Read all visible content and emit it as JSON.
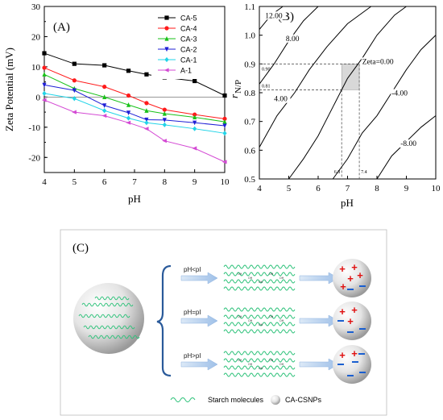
{
  "chart_data": [
    {
      "type": "line",
      "panel_label": "(A)",
      "xlabel": "pH",
      "ylabel": "Zeta Potential (mV)",
      "xlim": [
        4,
        10
      ],
      "ylim": [
        -25,
        30
      ],
      "x_ticks": [
        "4",
        "5",
        "6",
        "7",
        "8",
        "9",
        "10"
      ],
      "y_ticks": [
        "-20",
        "-10",
        "0",
        "10",
        "20",
        "30"
      ],
      "legend_position": "top-right",
      "series": [
        {
          "name": "CA-5",
          "color": "#000000",
          "marker": "square",
          "x": [
            4,
            5,
            6,
            6.8,
            7.4,
            8,
            9,
            10
          ],
          "values": [
            14.5,
            11,
            10.5,
            8.7,
            7.5,
            6.5,
            5.3,
            0.5
          ]
        },
        {
          "name": "CA-4",
          "color": "#ff1a1a",
          "marker": "circle",
          "x": [
            4,
            5,
            6,
            6.8,
            7.4,
            8,
            9,
            10
          ],
          "values": [
            9.7,
            5.5,
            3.4,
            0.5,
            -2,
            -4.2,
            -5.8,
            -7.2
          ]
        },
        {
          "name": "CA-3",
          "color": "#19c219",
          "marker": "triangle-up",
          "x": [
            4,
            5,
            6,
            6.8,
            7.4,
            8,
            9,
            10
          ],
          "values": [
            7.5,
            2.8,
            0,
            -2.6,
            -4.5,
            -5.5,
            -6.7,
            -8.2
          ]
        },
        {
          "name": "CA-2",
          "color": "#1f1fd6",
          "marker": "triangle-down",
          "x": [
            4,
            5,
            6,
            6.8,
            7.4,
            8,
            9,
            10
          ],
          "values": [
            4,
            2.2,
            -2.8,
            -5.2,
            -7.5,
            -7.6,
            -8.5,
            -9.5
          ]
        },
        {
          "name": "CA-1",
          "color": "#22d4e8",
          "marker": "diamond",
          "x": [
            4,
            5,
            6,
            6.8,
            7.4,
            8,
            9,
            10
          ],
          "values": [
            1.2,
            -0.5,
            -4.5,
            -7,
            -8.5,
            -9.2,
            -10.5,
            -12
          ]
        },
        {
          "name": "A-1",
          "color": "#d44ad4",
          "marker": "triangle-left",
          "x": [
            4,
            5,
            6,
            6.8,
            7.4,
            8,
            9,
            10
          ],
          "values": [
            -1,
            -5,
            -6.2,
            -8.5,
            -10.5,
            -14.5,
            -17,
            -21.5
          ]
        }
      ]
    },
    {
      "type": "contour",
      "panel_label": "(B)",
      "xlabel": "pH",
      "ylabel_main": "r",
      "ylabel_sub": "N/P",
      "xlim": [
        4,
        10
      ],
      "ylim": [
        0.5,
        1.1
      ],
      "x_ticks": [
        "4",
        "5",
        "6",
        "7",
        "8",
        "9",
        "10"
      ],
      "y_ticks": [
        "0.5",
        "0.6",
        "0.7",
        "0.8",
        "0.9",
        "1.0",
        "1.1"
      ],
      "contours": [
        {
          "label": "12.00",
          "label_pos": [
            4.2,
            1.06
          ],
          "points": [
            [
              4,
              1.02
            ],
            [
              4.4,
              1.07
            ],
            [
              4.8,
              1.1
            ]
          ]
        },
        {
          "label": "8.00",
          "label_pos": [
            4.9,
            0.98
          ],
          "points": [
            [
              4,
              0.83
            ],
            [
              4.5,
              0.9
            ],
            [
              5.0,
              0.98
            ],
            [
              5.5,
              1.05
            ],
            [
              6.0,
              1.1
            ]
          ]
        },
        {
          "label": "4.00",
          "label_pos": [
            4.5,
            0.77
          ],
          "points": [
            [
              4,
              0.61
            ],
            [
              4.6,
              0.72
            ],
            [
              5.2,
              0.8
            ],
            [
              5.7,
              0.88
            ],
            [
              6.3,
              0.96
            ],
            [
              7.0,
              1.04
            ],
            [
              7.8,
              1.1
            ]
          ]
        },
        {
          "label": "Zeta=0.00",
          "label_pos": [
            7.5,
            0.9
          ],
          "points": [
            [
              5.0,
              0.5
            ],
            [
              5.5,
              0.57
            ],
            [
              6.0,
              0.65
            ],
            [
              6.5,
              0.75
            ],
            [
              7.0,
              0.85
            ],
            [
              7.5,
              0.92
            ],
            [
              8.0,
              1.0
            ],
            [
              8.6,
              1.07
            ],
            [
              9.0,
              1.1
            ]
          ]
        },
        {
          "label": "-4.00",
          "label_pos": [
            8.5,
            0.79
          ],
          "points": [
            [
              6.5,
              0.5
            ],
            [
              7.0,
              0.57
            ],
            [
              7.5,
              0.66
            ],
            [
              8.0,
              0.72
            ],
            [
              8.5,
              0.8
            ],
            [
              9.0,
              0.88
            ],
            [
              9.5,
              0.95
            ],
            [
              10,
              1.0
            ]
          ]
        },
        {
          "label": "-8.00",
          "label_pos": [
            8.8,
            0.615
          ],
          "points": [
            [
              8.0,
              0.5
            ],
            [
              8.5,
              0.58
            ],
            [
              9.0,
              0.63
            ],
            [
              9.5,
              0.68
            ],
            [
              10,
              0.72
            ]
          ]
        }
      ],
      "highlight": {
        "x": [
          6.8,
          7.4
        ],
        "y": [
          0.81,
          0.9
        ]
      },
      "reference_labels": {
        "y_high": "0.90",
        "y_low": "0.81",
        "x_low": "6.8",
        "x_high": "7.4"
      }
    }
  ],
  "diagram": {
    "panel_label": "(C)",
    "conditions": [
      "pH<pI",
      "pH=pI",
      "pH>pI"
    ],
    "particle_charges": [
      {
        "plus": 5,
        "minus": 2
      },
      {
        "plus": 3,
        "minus": 3
      },
      {
        "plus": 2,
        "minus": 5
      }
    ],
    "legend": {
      "starch": "Starch molecules",
      "particle": "CA-CSNPs"
    },
    "colors": {
      "plus": "#e01010",
      "minus": "#1a5fd0",
      "starch": "#2ec27a",
      "arrow": "#a9c6ea"
    }
  }
}
